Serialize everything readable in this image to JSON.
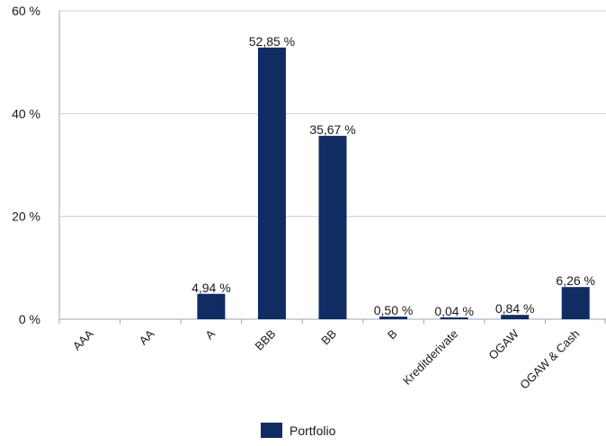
{
  "chart_data": {
    "type": "bar",
    "categories": [
      "AAA",
      "AA",
      "A",
      "BBB",
      "BB",
      "B",
      "Kreditderivate",
      "OGAW",
      "OGAW & Cash"
    ],
    "series": [
      {
        "name": "Portfolio",
        "values": [
          0,
          0,
          4.94,
          52.85,
          35.67,
          0.5,
          0.04,
          0.84,
          6.26
        ],
        "data_labels": [
          "",
          "",
          "4,94 %",
          "52,85 %",
          "35,67 %",
          "0,50 %",
          "0,04 %",
          "0,84 %",
          "6,26 %"
        ]
      }
    ],
    "ylim": [
      0,
      60
    ],
    "yticks": [
      0,
      20,
      40,
      60
    ],
    "ytick_labels": [
      "0 %",
      "20 %",
      "40 %",
      "60 %"
    ],
    "grid": true,
    "legend": "bottom-center",
    "colors": {
      "bar": "#112b63",
      "grid": "#c8d0dc",
      "axis": "#9aa6b8"
    }
  }
}
